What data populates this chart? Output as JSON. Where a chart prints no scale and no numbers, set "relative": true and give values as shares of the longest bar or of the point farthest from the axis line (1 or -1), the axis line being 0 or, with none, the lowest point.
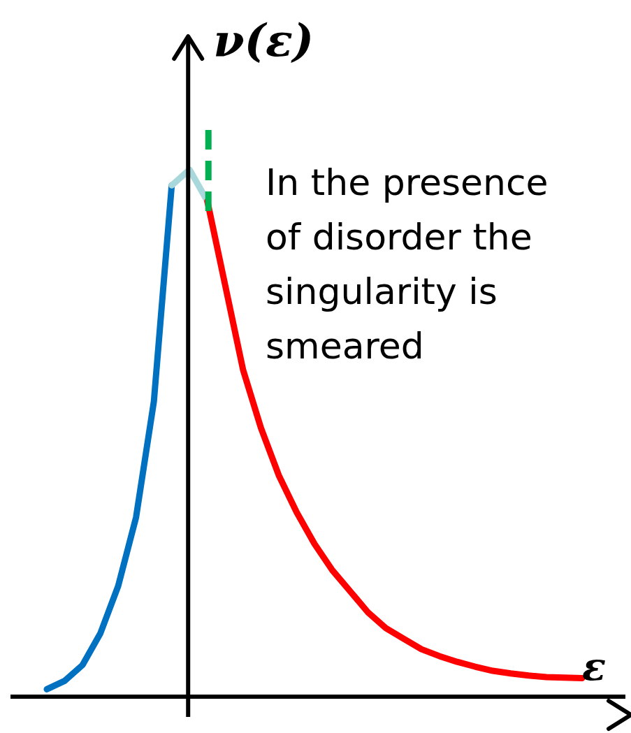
{
  "chart_data": {
    "type": "line",
    "relative": true,
    "xlabel": "ε",
    "ylabel": "ν(ε)",
    "marker": "none",
    "grid": false,
    "legend": false,
    "annotations": [
      "In the presence of disorder the singularity is smeared"
    ],
    "categories": [
      null,
      null,
      null,
      null,
      null,
      null,
      null,
      null,
      null,
      null,
      null,
      null,
      null,
      null,
      null,
      null,
      null,
      null,
      null,
      null,
      null,
      null,
      null,
      null,
      null,
      null,
      null,
      null,
      null,
      null,
      null
    ],
    "series": [
      {
        "color": "#0070c0",
        "values": [
          0.014,
          0.03,
          0.06,
          0.12,
          0.21,
          0.34,
          0.56,
          0.97,
          null,
          null,
          null,
          null,
          null,
          null,
          null,
          null,
          null,
          null,
          null,
          null,
          null,
          null,
          null,
          null,
          null,
          null,
          null,
          null,
          null,
          null,
          null
        ]
      },
      {
        "color": "#a9d8dc",
        "values": [
          null,
          null,
          null,
          null,
          null,
          null,
          null,
          0.97,
          1.0,
          0.94,
          null,
          null,
          null,
          null,
          null,
          null,
          null,
          null,
          null,
          null,
          null,
          null,
          null,
          null,
          null,
          null,
          null,
          null,
          null,
          null,
          null
        ]
      },
      {
        "color": "#ff0000",
        "values": [
          null,
          null,
          null,
          null,
          null,
          null,
          null,
          null,
          null,
          0.94,
          0.78,
          0.62,
          0.51,
          0.42,
          0.35,
          0.29,
          0.24,
          0.2,
          0.16,
          0.13,
          0.11,
          0.09,
          0.077,
          0.066,
          0.057,
          0.049,
          0.044,
          0.04,
          0.037,
          0.036,
          0.035
        ]
      }
    ]
  }
}
